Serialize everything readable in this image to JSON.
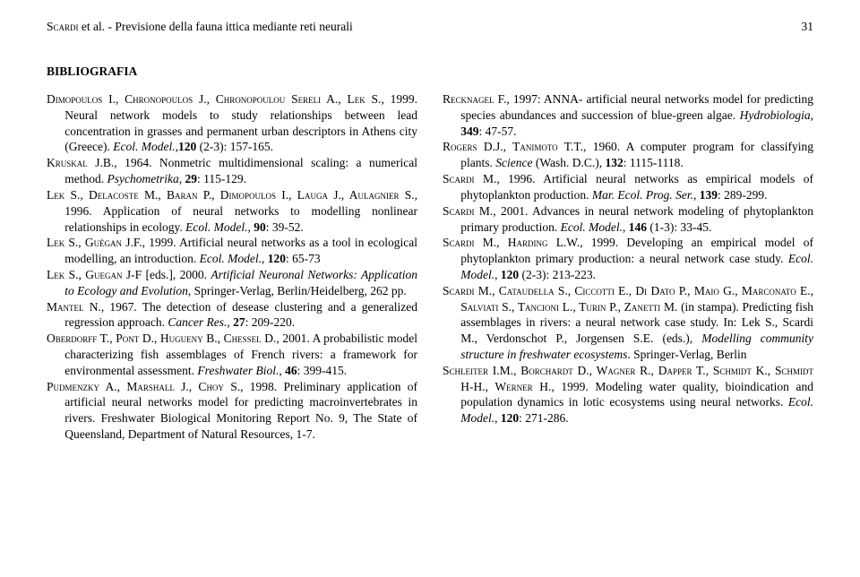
{
  "page_number": "31",
  "running_head_authors": "Scardi",
  "running_head_etal": " et al. - Previsione della fauna ittica mediante reti neurali",
  "heading": "BIBLIOGRAFIA",
  "refs": [
    "<span class='sc'>Dimopoulos I., Chronopoulos J., Chronopoulou Sereli A., Lek S.</span>, 1999. Neural network models to study relationships between lead concentration in grasses and permanent urban descriptors in Athens city (Greece). <span class='i'>Ecol. Model.</span>,<span class='b'>120</span> (2-3): 157-165.",
    "<span class='sc'>Kruskal J.B.</span>, 1964. Nonmetric multidimensional scaling: a numerical method. <span class='i'>Psychometrika,</span> <span class='b'>29</span>: 115-129.",
    "<span class='sc'>Lek S., Delacoste M., Baran P., Dimopoulos I., Lauga J., Aulagnier S.</span>, 1996. Application of neural networks to modelling nonlinear relationships in ecology. <span class='i'>Ecol. Model.</span>, <span class='b'>90</span>: 39-52.",
    "<span class='sc'>Lek S., Guégan J.F.</span>, 1999. Artificial neural networks as a tool in ecological modelling, an introduction. <span class='i'>Ecol. Model.</span>, <span class='b'>120</span>: 65-73",
    "<span class='sc'>Lek S., Guegan J-F</span> [eds.], 2000. <span class='i'>Artificial Neuronal Networks: Application to Ecology and Evolution</span>, Springer-Verlag, Berlin/Heidelberg, 262 pp.",
    "<span class='sc'>Mantel N.</span>, 1967. The detection of desease clustering and a generalized regression approach. <span class='i'>Cancer Res.</span>, <span class='b'>27</span>: 209-220.",
    "<span class='sc'>Oberdorff T., Pont D., Hugueny B., Chessel D.</span>, 2001. A probabilistic model characterizing fish assemblages of French rivers: a framework for environmental assessment. <span class='i'>Freshwater Biol.</span>, <span class='b'>46</span>: 399-415.",
    "<span class='sc'>Pudmenzky A., Marshall J., Choy S.</span>, 1998. Preliminary application of artificial neural networks model for predicting macroinvertebrates in rivers. Freshwater Biological Monitoring Report No. 9, The State of Queensland, Department of Natural Resources, 1-7.",
    "<span class='sc'>Recknagel F.</span>, 1997: ANNA- artificial neural networks model for predicting species abundances and succession of blue-green algae. <span class='i'>Hydrobiologia</span>, <span class='b'>349</span>: 47-57.",
    "<span class='sc'>Rogers D.J., Tanimoto T.T.</span>, 1960. A computer program for classifying plants. <span class='i'>Science</span> (Wash. D.C.), <span class='b'>132</span>: 1115-1118.",
    "<span class='sc'>Scardi M.</span>, 1996. Artificial neural networks as empirical models of phytoplankton production. <span class='i'>Mar. Ecol. Prog. Ser.</span>, <span class='b'>139</span>: 289-299.",
    "<span class='sc'>Scardi M.</span>, 2001. Advances in neural network modeling of phytoplankton primary production. <span class='i'>Ecol. Model.</span>, <span class='b'>146</span> (1-3): 33-45.",
    "<span class='sc'>Scardi M., Harding L.W.</span>, 1999. Developing an empirical model of phytoplankton primary production: a neural network case study. <span class='i'>Ecol. Model.</span>, <span class='b'>120</span> (2-3): 213-223.",
    "<span class='sc'>Scardi M., Cataudella S., Ciccotti E., Di Dato P., Maio G., Marconato E., Salviati S., Tancioni L., Turin P., Zanetti M.</span> (in stampa). Predicting fish assemblages in rivers: a neural network case study. In: Lek S., Scardi M., Verdonschot P., Jorgensen S.E. (eds.), <span class='i'>Modelling community structure in freshwater ecosystems</span>. Springer-Verlag, Berlin",
    "<span class='sc'>Schleiter I.M., Borchardt D., Wagner R., Dapper T., Schmidt K., Schmidt H-H., Werner H.</span>, 1999. Modeling water quality, bioindication and population dynamics in lotic ecosystems using neural networks. <span class='i'>Ecol. Model.</span>, <span class='b'>120</span>: 271-286."
  ]
}
